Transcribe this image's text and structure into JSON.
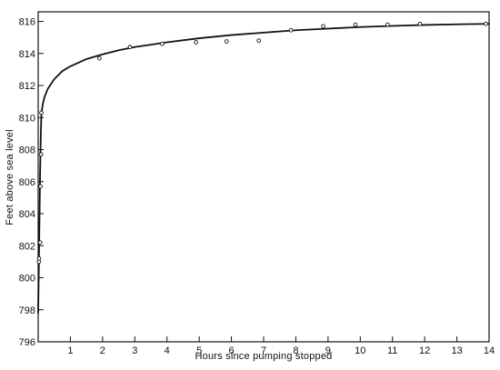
{
  "chart_data": {
    "type": "scatter",
    "title": "",
    "xlabel": "Hours since pumping stopped",
    "ylabel": "Feet above sea level",
    "xlim": [
      0,
      14
    ],
    "ylim": [
      796,
      816.6
    ],
    "xticks": [
      1,
      2,
      3,
      4,
      5,
      6,
      7,
      8,
      9,
      10,
      11,
      12,
      13,
      14
    ],
    "yticks": [
      796,
      798,
      800,
      802,
      804,
      806,
      808,
      810,
      812,
      814,
      816
    ],
    "grid": false,
    "legend": "none",
    "colors": {
      "ink": "#111111",
      "background": "#ffffff"
    },
    "series": [
      {
        "kind": "points",
        "x": [
          0.02,
          0.03,
          0.06,
          0.07,
          0.09,
          0.1,
          1.9,
          2.85,
          3.85,
          4.9,
          5.85,
          6.85,
          7.85,
          8.85,
          9.85,
          10.85,
          11.85,
          13.9
        ],
        "y": [
          801.0,
          801.2,
          802.2,
          805.7,
          807.7,
          810.3,
          813.7,
          814.4,
          814.6,
          814.7,
          814.75,
          814.8,
          815.45,
          815.7,
          815.8,
          815.8,
          815.85,
          815.85
        ]
      },
      {
        "kind": "curve",
        "x": [
          0.0,
          0.02,
          0.04,
          0.06,
          0.08,
          0.1,
          0.15,
          0.2,
          0.3,
          0.5,
          0.75,
          1.0,
          1.5,
          2.0,
          2.5,
          3.0,
          4.0,
          5.0,
          6.0,
          7.0,
          8.0,
          9.0,
          10.0,
          11.0,
          12.0,
          13.0,
          14.0
        ],
        "y": [
          797.8,
          800.6,
          803.6,
          806.6,
          808.8,
          810.3,
          810.9,
          811.3,
          811.8,
          812.4,
          812.9,
          813.2,
          813.65,
          813.95,
          814.2,
          814.4,
          814.7,
          814.95,
          815.15,
          815.3,
          815.45,
          815.55,
          815.65,
          815.72,
          815.78,
          815.82,
          815.85
        ]
      }
    ]
  }
}
